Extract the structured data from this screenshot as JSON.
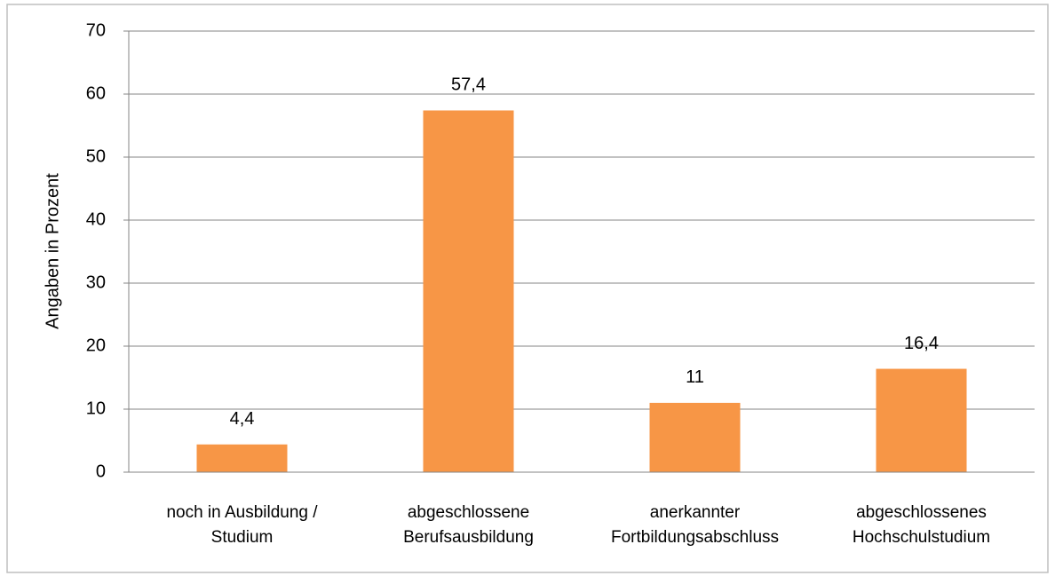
{
  "chart_data": {
    "type": "bar",
    "y_label": "Angaben in Prozent",
    "categories": [
      [
        "noch in Ausbildung /",
        "Studium"
      ],
      [
        "abgeschlossene",
        "Berufsausbildung"
      ],
      [
        "anerkannter",
        "Fortbildungsabschluss"
      ],
      [
        "abgeschlossenes",
        "Hochschulstudium"
      ]
    ],
    "values": [
      4.4,
      57.4,
      11,
      16.4
    ],
    "value_labels": [
      "4,4",
      "57,4",
      "11",
      "16,4"
    ],
    "color": "#f79646",
    "ylim": [
      0,
      70
    ],
    "yticks": [
      0,
      10,
      20,
      30,
      40,
      50,
      60,
      70
    ],
    "grid": true
  }
}
